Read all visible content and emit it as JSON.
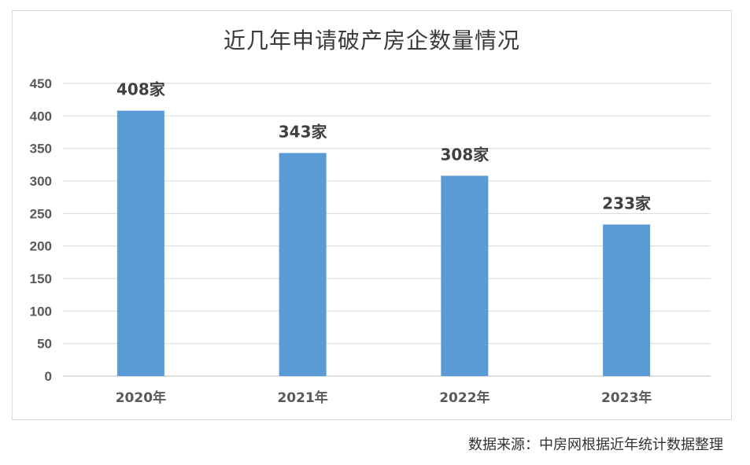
{
  "chart_data": {
    "type": "bar",
    "title": "近几年申请破产房企数量情况",
    "categories": [
      "2020年",
      "2021年",
      "2022年",
      "2023年"
    ],
    "values": [
      408,
      343,
      308,
      233
    ],
    "data_labels": [
      "408家",
      "343家",
      "308家",
      "233家"
    ],
    "ylim": [
      0,
      450
    ],
    "yticks": [
      0,
      50,
      100,
      150,
      200,
      250,
      300,
      350,
      400,
      450
    ],
    "grid": true,
    "legend": "none",
    "bar_color": "#5b9bd5",
    "xlabel": "",
    "ylabel": ""
  },
  "source_note": "数据来源：中房网根据近年统计数据整理"
}
